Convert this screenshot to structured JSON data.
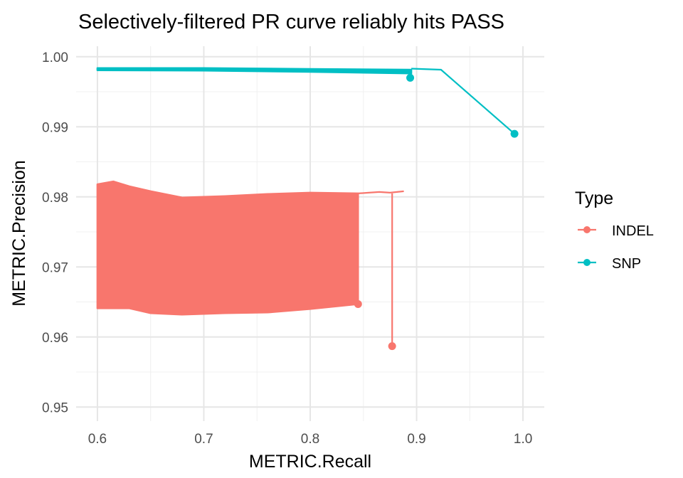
{
  "chart_data": {
    "type": "line",
    "title": "Selectively-filtered PR curve reliably hits PASS",
    "xlabel": "METRIC.Recall",
    "ylabel": "METRIC.Precision",
    "xlim": [
      0.58,
      1.02
    ],
    "ylim": [
      0.948,
      1.0015
    ],
    "x_ticks": [
      0.6,
      0.7,
      0.8,
      0.9,
      1.0
    ],
    "x_tick_labels": [
      "0.6",
      "0.7",
      "0.8",
      "0.9",
      "1.0"
    ],
    "y_ticks": [
      0.95,
      0.96,
      0.97,
      0.98,
      0.99,
      1.0
    ],
    "y_tick_labels": [
      "0.95",
      "0.96",
      "0.97",
      "0.98",
      "0.99",
      "1.00"
    ],
    "grid": true,
    "legend": {
      "title": "Type",
      "placement": "right",
      "entries": [
        {
          "label": "INDEL",
          "color": "#F8766D"
        },
        {
          "label": "SNP",
          "color": "#00BFC4"
        }
      ]
    },
    "series": [
      {
        "name": "INDEL",
        "color": "#F8766D",
        "band": {
          "recall_range": [
            0.6,
            0.845
          ],
          "upper": [
            [
              0.6,
              0.9818
            ],
            [
              0.615,
              0.9822
            ],
            [
              0.63,
              0.9815
            ],
            [
              0.65,
              0.9808
            ],
            [
              0.68,
              0.9799
            ],
            [
              0.72,
              0.9801
            ],
            [
              0.76,
              0.9804
            ],
            [
              0.8,
              0.9806
            ],
            [
              0.845,
              0.9805
            ]
          ],
          "lower": [
            [
              0.6,
              0.9641
            ],
            [
              0.63,
              0.9641
            ],
            [
              0.65,
              0.9634
            ],
            [
              0.68,
              0.9632
            ],
            [
              0.72,
              0.9634
            ],
            [
              0.76,
              0.9635
            ],
            [
              0.8,
              0.964
            ],
            [
              0.845,
              0.9647
            ]
          ]
        },
        "line": [
          [
            0.845,
            0.9805
          ],
          [
            0.855,
            0.9806
          ],
          [
            0.865,
            0.9807
          ],
          [
            0.875,
            0.9806
          ],
          [
            0.888,
            0.9808
          ]
        ],
        "drop": [
          [
            0.877,
            0.9805
          ],
          [
            0.877,
            0.9587
          ]
        ],
        "points": [
          [
            0.845,
            0.9647
          ],
          [
            0.877,
            0.9587
          ]
        ]
      },
      {
        "name": "SNP",
        "color": "#00BFC4",
        "band": {
          "recall_range": [
            0.6,
            0.895
          ],
          "upper": [
            [
              0.6,
              0.99838
            ],
            [
              0.7,
              0.99838
            ],
            [
              0.8,
              0.99825
            ],
            [
              0.895,
              0.99815
            ]
          ],
          "lower": [
            [
              0.6,
              0.99808
            ],
            [
              0.7,
              0.99802
            ],
            [
              0.8,
              0.99785
            ],
            [
              0.895,
              0.99762
            ]
          ]
        },
        "line": [
          [
            0.895,
            0.9983
          ],
          [
            0.923,
            0.99815
          ],
          [
            0.992,
            0.989
          ]
        ],
        "points": [
          [
            0.894,
            0.997
          ],
          [
            0.992,
            0.989
          ]
        ]
      }
    ]
  }
}
